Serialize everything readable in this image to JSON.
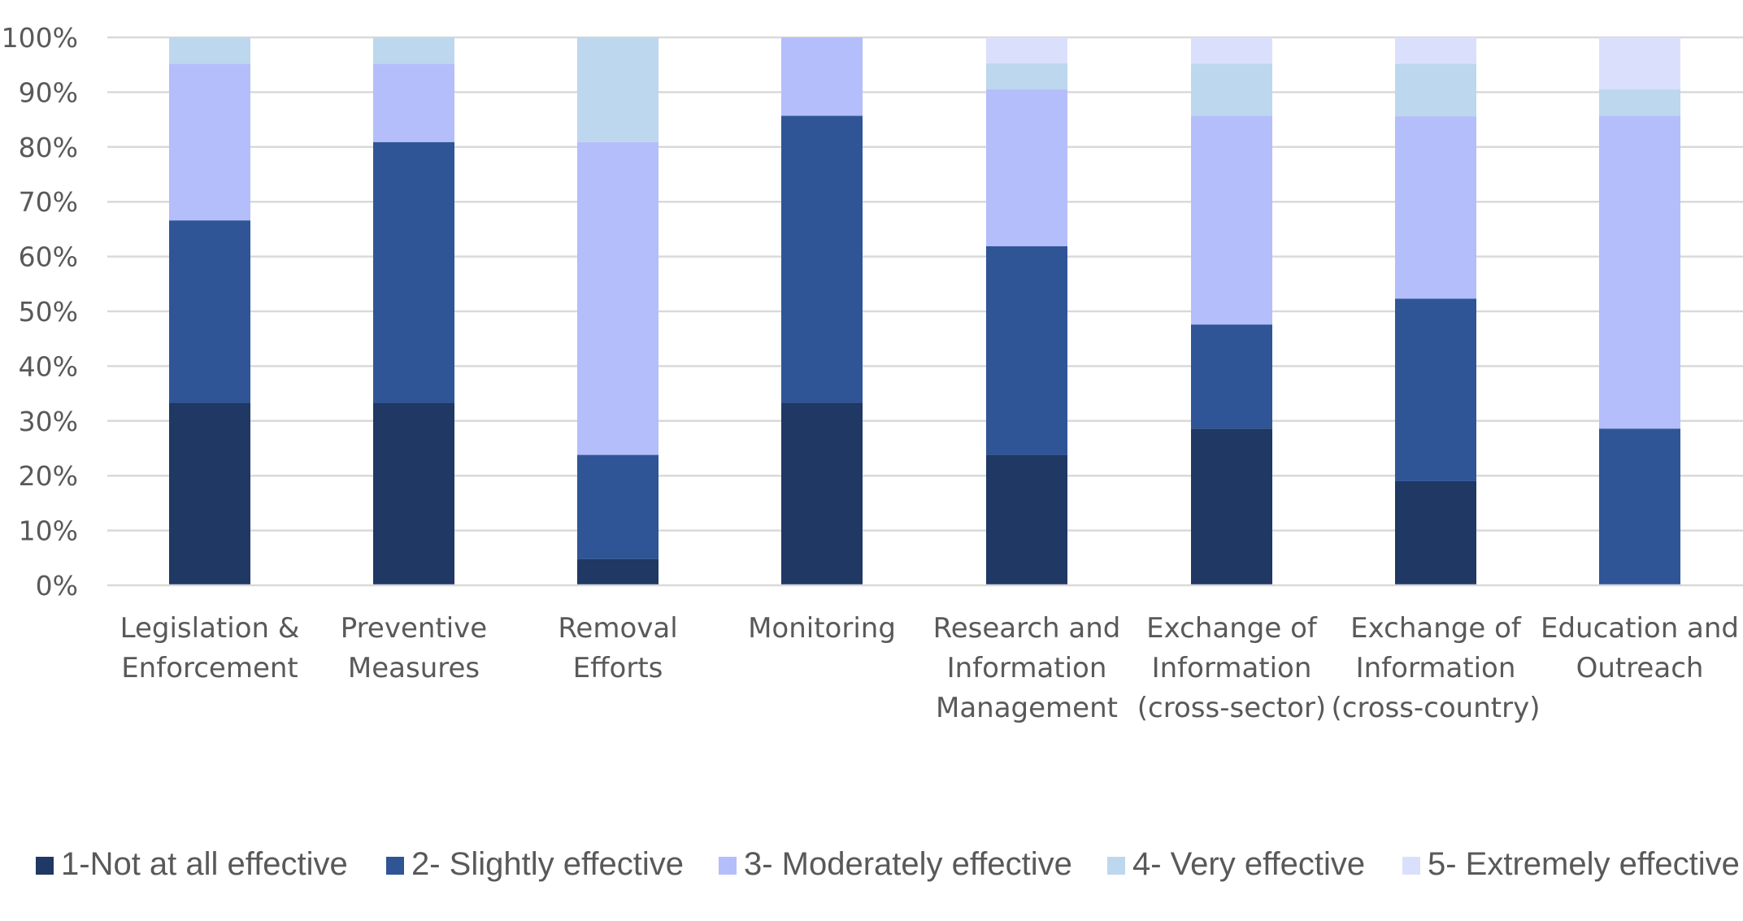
{
  "chart_data": {
    "type": "bar",
    "stacked": true,
    "normalized": true,
    "title": "",
    "xlabel": "",
    "ylabel": "",
    "ylim": [
      0,
      100
    ],
    "y_ticks": [
      "0%",
      "10%",
      "20%",
      "30%",
      "40%",
      "50%",
      "60%",
      "70%",
      "80%",
      "90%",
      "100%"
    ],
    "grid": true,
    "legend_position": "bottom",
    "categories": [
      [
        "Legislation &",
        "Enforcement"
      ],
      [
        "Preventive",
        "Measures"
      ],
      [
        "Removal",
        "Efforts"
      ],
      [
        "Monitoring"
      ],
      [
        "Research and",
        "Information",
        "Management"
      ],
      [
        "Exchange of",
        "Information",
        "(cross-sector)"
      ],
      [
        "Exchange of",
        "Information",
        "(cross-country)"
      ],
      [
        "Education and",
        "Outreach"
      ]
    ],
    "series": [
      {
        "name": "1-Not at all effective",
        "color": "#1f3864",
        "values": [
          33.3,
          33.3,
          4.8,
          33.3,
          23.8,
          28.6,
          19.0,
          0.0
        ]
      },
      {
        "name": "2- Slightly effective",
        "color": "#2f5597",
        "values": [
          33.3,
          47.6,
          19.0,
          52.4,
          38.1,
          19.0,
          33.3,
          28.6
        ]
      },
      {
        "name": "3- Moderately effective",
        "color": "#b4befa",
        "values": [
          28.6,
          14.3,
          57.1,
          14.3,
          28.6,
          38.1,
          33.3,
          57.1
        ]
      },
      {
        "name": "4- Very effective",
        "color": "#bdd7ee",
        "values": [
          4.8,
          4.8,
          19.1,
          0.0,
          4.8,
          9.5,
          9.6,
          4.8
        ]
      },
      {
        "name": "5- Extremely effective",
        "color": "#dae0fc",
        "values": [
          0.0,
          0.0,
          0.0,
          0.0,
          4.7,
          4.8,
          4.8,
          9.5
        ]
      }
    ]
  }
}
